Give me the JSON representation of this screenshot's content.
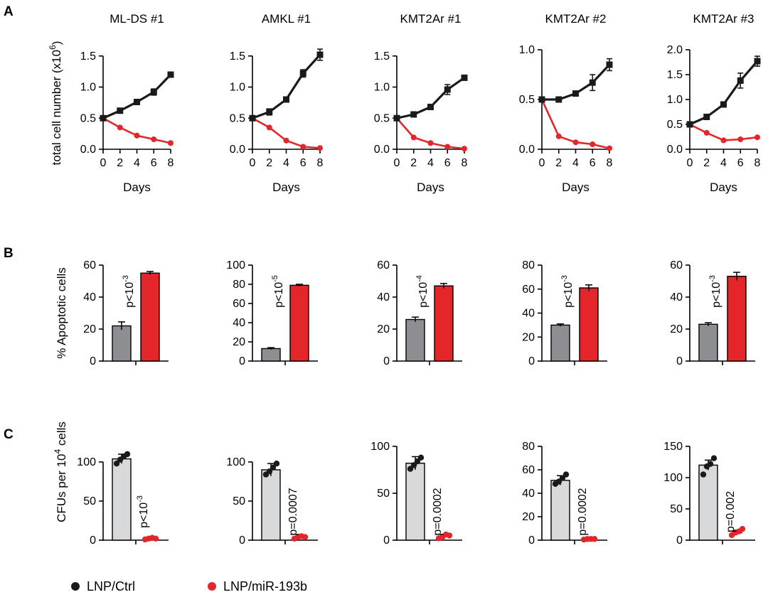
{
  "figure": {
    "panel_letters": [
      "A",
      "B",
      "C"
    ],
    "legend": [
      {
        "label": "LNP/Ctrl",
        "color": "#1a1a1a"
      },
      {
        "label": "LNP/miR-193b",
        "color": "#e2262a"
      }
    ]
  },
  "chart_data": [
    {
      "panel": "A",
      "type": "line",
      "title": "ML-DS #1",
      "xlabel": "Days",
      "ylabel": "total cell number (x10^6)",
      "ylim": [
        0,
        1.6
      ],
      "yticks": [
        0,
        0.5,
        1.0,
        1.5
      ],
      "ytick_labels": [
        "0.0",
        "0.5",
        "1.0",
        "1.5"
      ],
      "x": [
        0,
        2,
        4,
        6,
        8
      ],
      "series": [
        {
          "name": "LNP/Ctrl",
          "values": [
            0.5,
            0.62,
            0.76,
            0.92,
            1.2
          ],
          "errors": [
            0,
            0.02,
            0.04,
            0.05,
            0.03
          ]
        },
        {
          "name": "LNP/miR-193b",
          "values": [
            0.5,
            0.35,
            0.22,
            0.16,
            0.1
          ],
          "errors": [
            0,
            0.01,
            0.01,
            0.01,
            0.01
          ]
        }
      ]
    },
    {
      "panel": "A",
      "type": "line",
      "title": "AMKL #1",
      "xlabel": "Days",
      "ylabel": "",
      "ylim": [
        0,
        1.6
      ],
      "yticks": [
        0,
        0.5,
        1.0,
        1.5
      ],
      "ytick_labels": [
        "0.0",
        "0.5",
        "1.0",
        "1.5"
      ],
      "x": [
        0,
        2,
        4,
        6,
        8
      ],
      "series": [
        {
          "name": "LNP/Ctrl",
          "values": [
            0.5,
            0.6,
            0.8,
            1.22,
            1.52
          ],
          "errors": [
            0,
            0.05,
            0.03,
            0.06,
            0.09
          ]
        },
        {
          "name": "LNP/miR-193b",
          "values": [
            0.5,
            0.35,
            0.14,
            0.04,
            0.02
          ],
          "errors": [
            0,
            0.01,
            0.01,
            0.01,
            0.01
          ]
        }
      ]
    },
    {
      "panel": "A",
      "type": "line",
      "title": "KMT2Ar #1",
      "xlabel": "Days",
      "ylabel": "",
      "ylim": [
        0,
        1.6
      ],
      "yticks": [
        0,
        0.5,
        1.0,
        1.5
      ],
      "ytick_labels": [
        "0.0",
        "0.5",
        "1.0",
        "1.5"
      ],
      "x": [
        0,
        2,
        4,
        6,
        8
      ],
      "series": [
        {
          "name": "LNP/Ctrl",
          "values": [
            0.5,
            0.56,
            0.68,
            0.96,
            1.15
          ],
          "errors": [
            0,
            0.02,
            0.04,
            0.08,
            0.04
          ]
        },
        {
          "name": "LNP/miR-193b",
          "values": [
            0.5,
            0.19,
            0.1,
            0.04,
            0.01
          ],
          "errors": [
            0,
            0.01,
            0.01,
            0.01,
            0.01
          ]
        }
      ]
    },
    {
      "panel": "A",
      "type": "line",
      "title": "KMT2Ar #2",
      "xlabel": "Days",
      "ylabel": "",
      "ylim": [
        0,
        1.0
      ],
      "yticks": [
        0,
        0.5,
        1.0
      ],
      "ytick_labels": [
        "0.0",
        "0.5",
        "1.0"
      ],
      "x": [
        0,
        2,
        4,
        6,
        8
      ],
      "series": [
        {
          "name": "LNP/Ctrl",
          "values": [
            0.5,
            0.5,
            0.56,
            0.67,
            0.85
          ],
          "errors": [
            0,
            0.01,
            0.02,
            0.08,
            0.06
          ]
        },
        {
          "name": "LNP/miR-193b",
          "values": [
            0.5,
            0.13,
            0.07,
            0.05,
            0.01
          ],
          "errors": [
            0,
            0.01,
            0.01,
            0.01,
            0.01
          ]
        }
      ]
    },
    {
      "panel": "A",
      "type": "line",
      "title": "KMT2Ar #3",
      "xlabel": "Days",
      "ylabel": "",
      "ylim": [
        0,
        2.0
      ],
      "yticks": [
        0,
        0.5,
        1.0,
        1.5,
        2.0
      ],
      "ytick_labels": [
        "0.0",
        "0.5",
        "1.0",
        "1.5",
        "2.0"
      ],
      "x": [
        0,
        2,
        4,
        6,
        8
      ],
      "series": [
        {
          "name": "LNP/Ctrl",
          "values": [
            0.5,
            0.65,
            0.9,
            1.38,
            1.77
          ],
          "errors": [
            0,
            0.03,
            0.05,
            0.15,
            0.1
          ]
        },
        {
          "name": "LNP/miR-193b",
          "values": [
            0.5,
            0.33,
            0.18,
            0.2,
            0.24
          ],
          "errors": [
            0,
            0.01,
            0.01,
            0.01,
            0.01
          ]
        }
      ]
    },
    {
      "panel": "B",
      "type": "bar",
      "ylabel": "% Apoptotic cells",
      "ylim": [
        0,
        60
      ],
      "yticks": [
        0,
        20,
        40,
        60
      ],
      "ytick_labels": [
        "0",
        "20",
        "40",
        "60"
      ],
      "pvalue": "p<10",
      "pvalue_exp": "-3",
      "categories": [
        "LNP/Ctrl",
        "LNP/miR-193b"
      ],
      "values": [
        22,
        55
      ],
      "errors": [
        2.5,
        1
      ]
    },
    {
      "panel": "B",
      "type": "bar",
      "ylabel": "",
      "ylim": [
        0,
        100
      ],
      "yticks": [
        0,
        20,
        40,
        60,
        80,
        100
      ],
      "ytick_labels": [
        "0",
        "20",
        "40",
        "60",
        "80",
        "100"
      ],
      "pvalue": "p<10",
      "pvalue_exp": "-5",
      "categories": [
        "LNP/Ctrl",
        "LNP/miR-193b"
      ],
      "values": [
        13,
        79
      ],
      "errors": [
        1,
        1
      ]
    },
    {
      "panel": "B",
      "type": "bar",
      "ylabel": "",
      "ylim": [
        0,
        60
      ],
      "yticks": [
        0,
        20,
        40,
        60
      ],
      "ytick_labels": [
        "0",
        "20",
        "40",
        "60"
      ],
      "pvalue": "p<10",
      "pvalue_exp": "-4",
      "categories": [
        "LNP/Ctrl",
        "LNP/miR-193b"
      ],
      "values": [
        26,
        47
      ],
      "errors": [
        1.5,
        1.5
      ]
    },
    {
      "panel": "B",
      "type": "bar",
      "ylabel": "",
      "ylim": [
        0,
        80
      ],
      "yticks": [
        0,
        20,
        40,
        60,
        80
      ],
      "ytick_labels": [
        "0",
        "20",
        "40",
        "60",
        "80"
      ],
      "pvalue": "p<10",
      "pvalue_exp": "-3",
      "categories": [
        "LNP/Ctrl",
        "LNP/miR-193b"
      ],
      "values": [
        30,
        61
      ],
      "errors": [
        1,
        2.5
      ]
    },
    {
      "panel": "B",
      "type": "bar",
      "ylabel": "",
      "ylim": [
        0,
        60
      ],
      "yticks": [
        0,
        20,
        40,
        60
      ],
      "ytick_labels": [
        "0",
        "20",
        "40",
        "60"
      ],
      "pvalue": "p<10",
      "pvalue_exp": "-3",
      "categories": [
        "LNP/Ctrl",
        "LNP/miR-193b"
      ],
      "values": [
        23,
        53
      ],
      "errors": [
        1,
        2.5
      ]
    },
    {
      "panel": "C",
      "type": "bar",
      "ylabel": "CFUs per 10^4 cells",
      "ylim": [
        0,
        120
      ],
      "yticks": [
        0,
        50,
        100
      ],
      "ytick_labels": [
        "0",
        "50",
        "100"
      ],
      "pvalue": "p<10",
      "pvalue_exp": "-3",
      "categories": [
        "LNP/Ctrl",
        "LNP/miR-193b"
      ],
      "values": [
        104,
        2
      ],
      "errors": [
        6,
        1
      ],
      "points": [
        [
          98,
          103,
          107,
          110
        ],
        [
          1,
          2,
          3,
          2
        ]
      ]
    },
    {
      "panel": "C",
      "type": "bar",
      "ylabel": "",
      "ylim": [
        0,
        120
      ],
      "yticks": [
        0,
        50,
        100
      ],
      "ytick_labels": [
        "0",
        "50",
        "100"
      ],
      "pvalue": "p=0.0007",
      "pvalue_exp": "",
      "categories": [
        "LNP/Ctrl",
        "LNP/miR-193b"
      ],
      "values": [
        90,
        4
      ],
      "errors": [
        8,
        1
      ],
      "points": [
        [
          84,
          88,
          93,
          98
        ],
        [
          2,
          4,
          5,
          4
        ]
      ]
    },
    {
      "panel": "C",
      "type": "bar",
      "ylabel": "",
      "ylim": [
        0,
        100
      ],
      "yticks": [
        0,
        50,
        100
      ],
      "ytick_labels": [
        "0",
        "50",
        "100"
      ],
      "pvalue": "p=0.0002",
      "pvalue_exp": "",
      "categories": [
        "LNP/Ctrl",
        "LNP/miR-193b"
      ],
      "values": [
        82,
        4
      ],
      "errors": [
        7,
        2
      ],
      "points": [
        [
          76,
          80,
          84,
          88
        ],
        [
          2,
          3,
          6,
          5
        ]
      ]
    },
    {
      "panel": "C",
      "type": "bar",
      "ylabel": "",
      "ylim": [
        0,
        80
      ],
      "yticks": [
        0,
        20,
        40,
        60,
        80
      ],
      "ytick_labels": [
        "0",
        "20",
        "40",
        "60",
        "80"
      ],
      "pvalue": "p=0.0002",
      "pvalue_exp": "",
      "categories": [
        "LNP/Ctrl",
        "LNP/miR-193b"
      ],
      "values": [
        51,
        1
      ],
      "errors": [
        4,
        0.5
      ],
      "points": [
        [
          48,
          50,
          53,
          56
        ],
        [
          0.5,
          1,
          1,
          1
        ]
      ]
    },
    {
      "panel": "C",
      "type": "bar",
      "ylabel": "",
      "ylim": [
        0,
        150
      ],
      "yticks": [
        0,
        50,
        100,
        150
      ],
      "ytick_labels": [
        "0",
        "50",
        "100",
        "150"
      ],
      "pvalue": "p=0.002",
      "pvalue_exp": "",
      "categories": [
        "LNP/Ctrl",
        "LNP/miR-193b"
      ],
      "values": [
        120,
        12
      ],
      "errors": [
        8,
        4
      ],
      "points": [
        [
          105,
          118,
          122,
          131
        ],
        [
          8,
          12,
          14,
          18
        ]
      ]
    }
  ]
}
